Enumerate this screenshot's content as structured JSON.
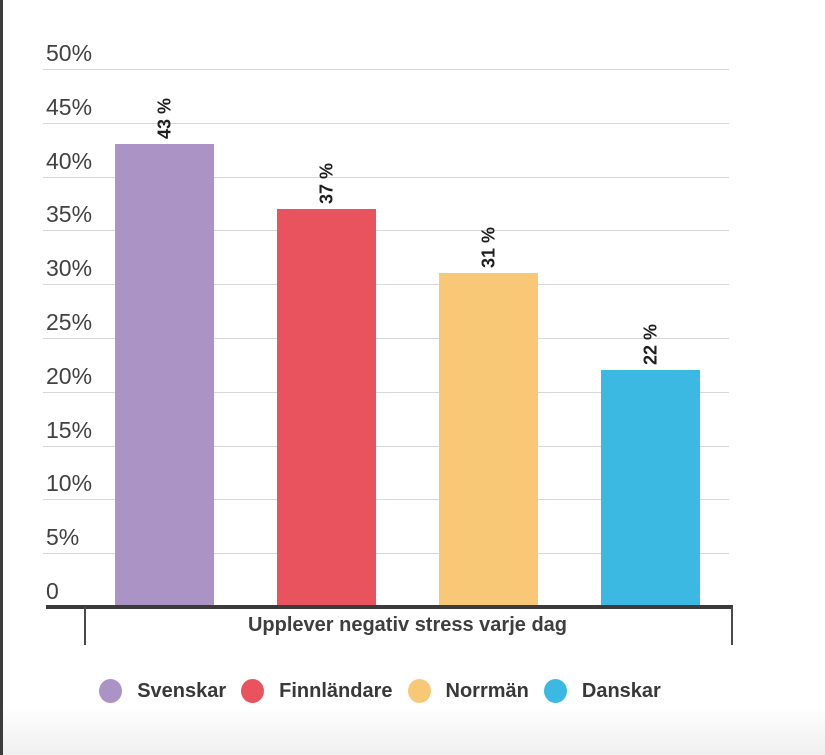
{
  "chart_data": {
    "type": "bar",
    "title": "",
    "xlabel": "Upplever negativ stress varje dag",
    "ylabel": "",
    "ylim": [
      0,
      50
    ],
    "grid": true,
    "legend_position": "bottom",
    "y_ticks": [
      {
        "value": 0,
        "label": "0"
      },
      {
        "value": 5,
        "label": "5%"
      },
      {
        "value": 10,
        "label": "10%"
      },
      {
        "value": 15,
        "label": "15%"
      },
      {
        "value": 20,
        "label": "20%"
      },
      {
        "value": 25,
        "label": "25%"
      },
      {
        "value": 30,
        "label": "30%"
      },
      {
        "value": 35,
        "label": "35%"
      },
      {
        "value": 40,
        "label": "40%"
      },
      {
        "value": 45,
        "label": "45%"
      },
      {
        "value": 50,
        "label": "50%"
      }
    ],
    "categories": [
      "Upplever negativ stress varje dag"
    ],
    "series": [
      {
        "name": "Svenskar",
        "value": 43,
        "value_label": "43 %",
        "color": "#ab93c5"
      },
      {
        "name": "Finnländare",
        "value": 37,
        "value_label": "37 %",
        "color": "#e8535e"
      },
      {
        "name": "Norrmän",
        "value": 31,
        "value_label": "31 %",
        "color": "#f8c877"
      },
      {
        "name": "Danskar",
        "value": 22,
        "value_label": "22 %",
        "color": "#3bb9e3"
      }
    ]
  },
  "colors": {
    "axis_line": "#3b3b3b",
    "gridline": "#d7d7d7",
    "tick_text": "#414141",
    "axis_title_text": "#3e3e3e",
    "value_label_text": "#1e1e1e",
    "legend_text": "#383838",
    "widget_border": "#3c3c3c",
    "footer_end": "#f0f0f0",
    "background": "#ffffff"
  }
}
